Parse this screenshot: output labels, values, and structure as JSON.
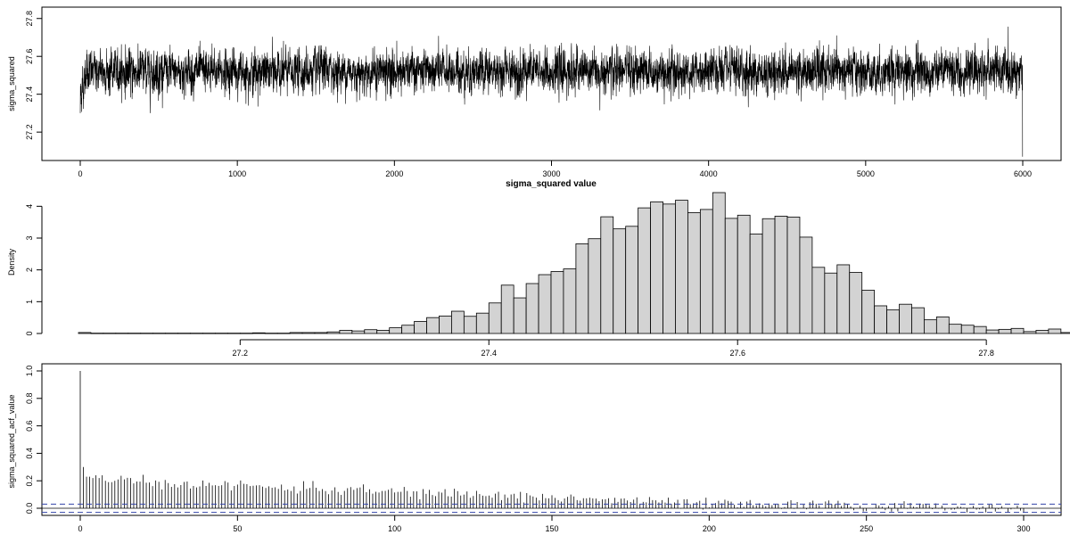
{
  "chart_data": [
    {
      "type": "line",
      "title": "",
      "xlabel": "sigma_squared value",
      "ylabel": "sigma_squared",
      "xlim": [
        0,
        6000
      ],
      "ylim": [
        27.05,
        27.86
      ],
      "xticks": [
        "0",
        "1000",
        "2000",
        "3000",
        "4000",
        "5000",
        "6000"
      ],
      "yticks": [
        "27.2",
        "27.4",
        "27.6",
        "27.8"
      ],
      "trace_center": 27.52,
      "trace_sd": 0.085,
      "trace_min": 27.07,
      "trace_max": 27.84,
      "n_iterations": 6000
    },
    {
      "type": "bar",
      "title": "",
      "xlabel": "",
      "ylabel": "Density",
      "bin_start": 27.07,
      "bin_width": 0.01,
      "xlim": [
        27.07,
        27.83
      ],
      "ylim": [
        0,
        4.3
      ],
      "xticks": [
        "27.2",
        "27.4",
        "27.6",
        "27.8"
      ],
      "yticks": [
        "0",
        "1",
        "2",
        "3",
        "4"
      ],
      "values": [
        0.03,
        0.01,
        0.01,
        0.01,
        0.01,
        0.01,
        0.01,
        0.01,
        0.01,
        0.01,
        0.01,
        0.01,
        0.01,
        0.01,
        0.02,
        0.01,
        0.01,
        0.03,
        0.03,
        0.03,
        0.05,
        0.1,
        0.08,
        0.12,
        0.1,
        0.18,
        0.26,
        0.38,
        0.5,
        0.55,
        0.7,
        0.54,
        0.64,
        0.96,
        1.52,
        1.12,
        1.57,
        1.85,
        1.95,
        2.03,
        2.82,
        2.98,
        3.67,
        3.29,
        3.37,
        3.95,
        4.14,
        4.07,
        4.19,
        3.8,
        3.9,
        4.43,
        3.62,
        3.72,
        3.13,
        3.61,
        3.69,
        3.66,
        3.03,
        2.08,
        1.9,
        2.16,
        1.92,
        1.36,
        0.87,
        0.74,
        0.92,
        0.81,
        0.43,
        0.52,
        0.29,
        0.26,
        0.22,
        0.11,
        0.13,
        0.16,
        0.06,
        0.1,
        0.14,
        0.03
      ]
    },
    {
      "type": "bar",
      "title": "",
      "xlabel": "",
      "ylabel": "sigma_squared_acf_value",
      "xlim": [
        0,
        300
      ],
      "ylim": [
        -0.1,
        1.05
      ],
      "xticks": [
        "0",
        "50",
        "100",
        "150",
        "200",
        "250",
        "300"
      ],
      "yticks": [
        "0.0",
        "0.2",
        "0.4",
        "0.6",
        "0.8",
        "1.0"
      ],
      "confidence_band": [
        -0.03,
        0.03
      ],
      "lags": 300,
      "acf_first": [
        1.0,
        0.3,
        0.23,
        0.23,
        0.22,
        0.24,
        0.22,
        0.24,
        0.2,
        0.19,
        0.19,
        0.2
      ],
      "acf_trend": "decays slowly from about 0.20 at lag 10 to about 0.12 at lag 100, 0.08 at lag 150, 0.03 at lag 200 and near 0 by lag 300"
    }
  ]
}
